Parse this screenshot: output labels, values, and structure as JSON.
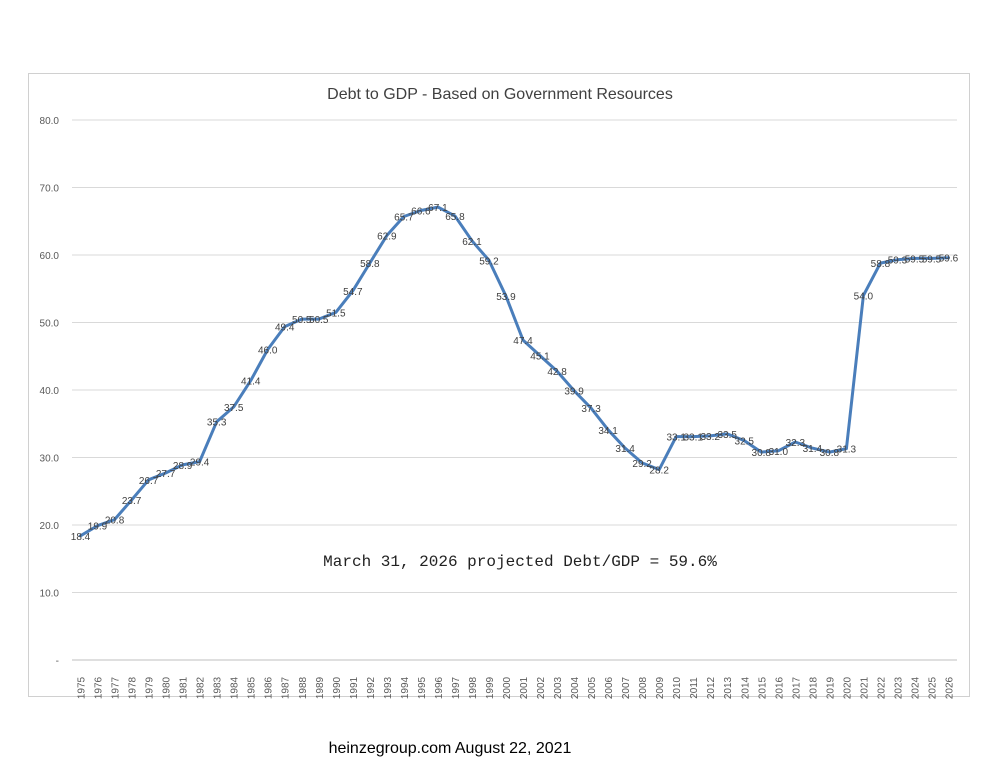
{
  "chart_data": {
    "type": "line",
    "title": "Debt to GDP - Based on Government Resources",
    "xlabel": "",
    "ylabel": "",
    "ylim": [
      0,
      80
    ],
    "y_ticks": [
      "-",
      "10.0",
      "20.0",
      "30.0",
      "40.0",
      "50.0",
      "60.0",
      "70.0",
      "80.0"
    ],
    "grid": "horizontal",
    "line_color": "#4a7ebb",
    "categories": [
      "1975",
      "1976",
      "1977",
      "1978",
      "1979",
      "1980",
      "1981",
      "1982",
      "1983",
      "1984",
      "1985",
      "1986",
      "1987",
      "1988",
      "1989",
      "1990",
      "1991",
      "1992",
      "1993",
      "1994",
      "1995",
      "1996",
      "1997",
      "1998",
      "1999",
      "2000",
      "2001",
      "2002",
      "2003",
      "2004",
      "2005",
      "2006",
      "2007",
      "2008",
      "2009",
      "2010",
      "2011",
      "2012",
      "2013",
      "2014",
      "2015",
      "2016",
      "2017",
      "2018",
      "2019",
      "2020",
      "2021",
      "2022",
      "2023",
      "2024",
      "2025",
      "2026"
    ],
    "values": [
      18.4,
      19.9,
      20.8,
      23.7,
      26.7,
      27.7,
      28.9,
      29.4,
      35.3,
      37.5,
      41.4,
      46.0,
      49.4,
      50.5,
      50.5,
      51.5,
      54.7,
      58.8,
      62.9,
      65.7,
      66.6,
      67.1,
      65.8,
      62.1,
      59.2,
      53.9,
      47.4,
      45.1,
      42.8,
      39.9,
      37.3,
      34.1,
      31.4,
      29.2,
      28.2,
      33.1,
      33.1,
      33.2,
      33.5,
      32.5,
      30.8,
      31.0,
      32.3,
      31.4,
      30.8,
      31.3,
      54.0,
      58.8,
      59.3,
      59.5,
      59.5,
      59.6
    ],
    "data_labels": [
      "18.4",
      "19.9",
      "20.8",
      "23.7",
      "26.7",
      "27.7",
      "28.9",
      "29.4",
      "35.3",
      "37.5",
      "41.4",
      "46.0",
      "49.4",
      "50.5",
      "50.5",
      "51.5",
      "54.7",
      "58.8",
      "62.9",
      "65.7",
      "66.6",
      "67.1",
      "65.8",
      "62.1",
      "59.2",
      "53.9",
      "47.4",
      "45.1",
      "42.8",
      "39.9",
      "37.3",
      "34.1",
      "31.4",
      "29.2",
      "28.2",
      "33.1",
      "33.1",
      "33.2",
      "33.5",
      "32.5",
      "30.8",
      "31.0",
      "32.3",
      "31.4",
      "30.8",
      "31.3",
      "54.0",
      "58.8",
      "59.3",
      "59.5",
      "59.5",
      "59.6"
    ],
    "annotation": "March 31, 2026 projected Debt/GDP = 59.6%"
  },
  "footer": "heinzegroup.com  August 22, 2021"
}
